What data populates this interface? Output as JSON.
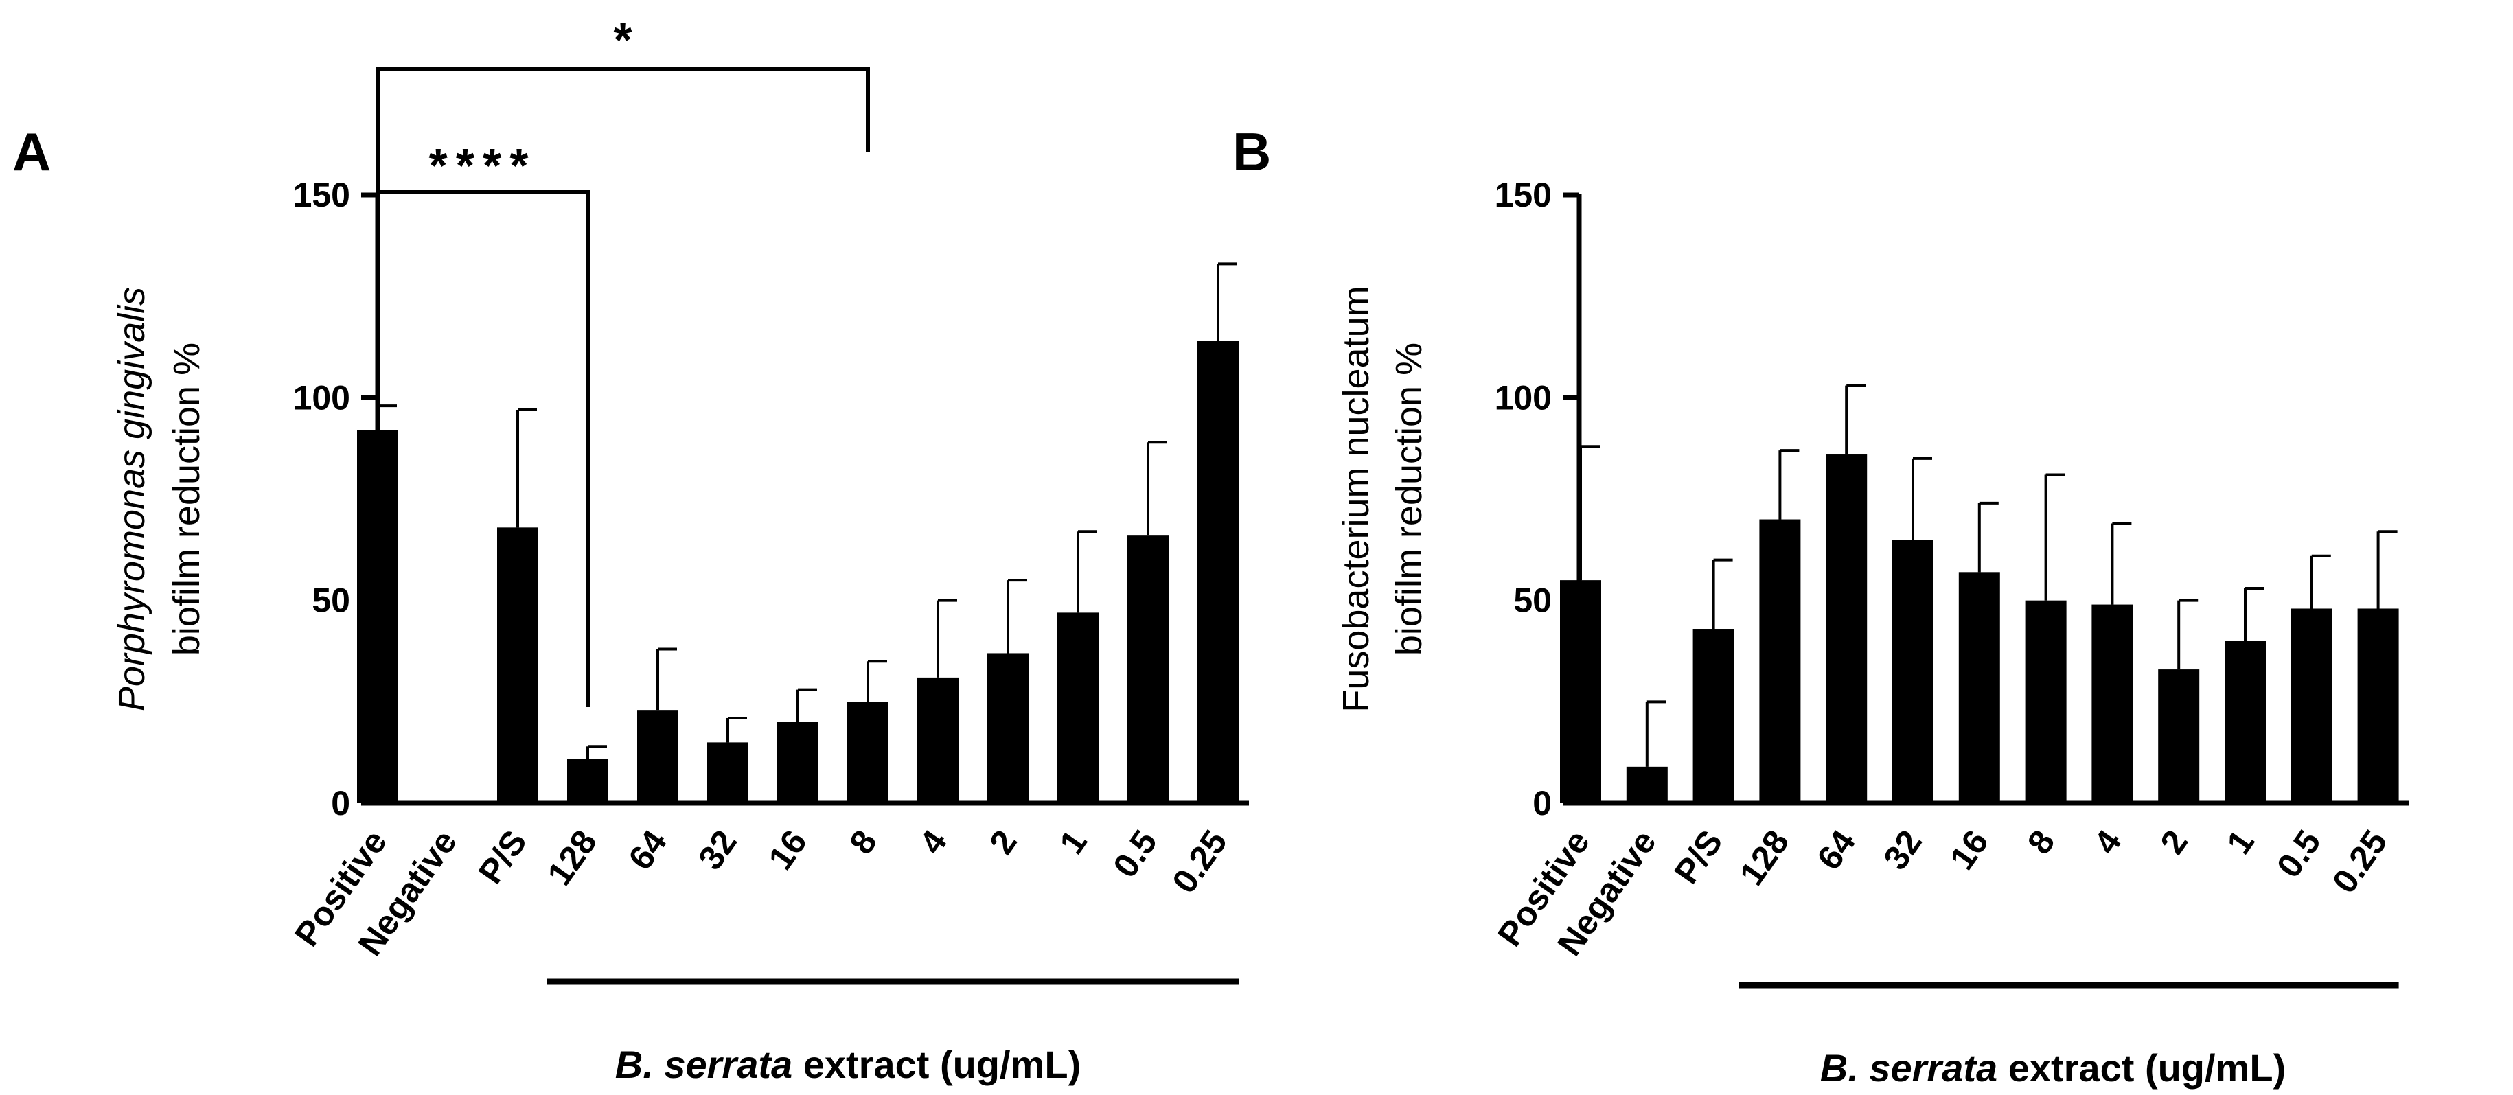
{
  "chart_data": [
    {
      "type": "bar",
      "panel_label": "A",
      "ylabel_italic": "Porphyromonas gingivalis",
      "ylabel": "biofilm reduction %",
      "xlabel_italic": "B. serrata",
      "xlabel": " extract (ug/mL)",
      "ylim": [
        0,
        150
      ],
      "yticks": [
        0,
        50,
        100,
        150
      ],
      "ytick_labels": [
        "0",
        "50",
        "100",
        "150"
      ],
      "categories": [
        "Positive",
        "Negative",
        "P/S",
        "128",
        "64",
        "32",
        "16",
        "8",
        "4",
        "2",
        "1",
        "0.5",
        "0.25"
      ],
      "values": [
        92,
        0,
        68,
        11,
        23,
        15,
        20,
        25,
        31,
        37,
        47,
        66,
        114
      ],
      "errors": [
        6,
        0,
        29,
        3,
        15,
        6,
        8,
        10,
        19,
        18,
        20,
        23,
        19
      ],
      "extract_bar_categories": [
        "128",
        "0.25"
      ],
      "significance": [
        {
          "from": "Positive",
          "to": "128",
          "label": "****"
        },
        {
          "from": "Positive",
          "to": "8",
          "label": "*"
        }
      ]
    },
    {
      "type": "bar",
      "panel_label": "B",
      "ylabel_line1": "Fusobacterium nucleatum",
      "ylabel": "biofilm reduction %",
      "xlabel_italic": "B. serrata",
      "xlabel": " extract (ug/mL)",
      "ylim": [
        0,
        150
      ],
      "yticks": [
        0,
        50,
        100,
        150
      ],
      "ytick_labels": [
        "0",
        "50",
        "100",
        "150"
      ],
      "categories": [
        "Positive",
        "Negative",
        "P/S",
        "128",
        "64",
        "32",
        "16",
        "8",
        "4",
        "2",
        "1",
        "0.5",
        "0.25"
      ],
      "values": [
        55,
        9,
        43,
        70,
        86,
        65,
        57,
        50,
        49,
        33,
        40,
        48,
        48
      ],
      "errors": [
        33,
        16,
        17,
        17,
        17,
        20,
        17,
        31,
        20,
        17,
        13,
        13,
        19
      ],
      "extract_bar_categories": [
        "128",
        "0.25"
      ]
    }
  ]
}
